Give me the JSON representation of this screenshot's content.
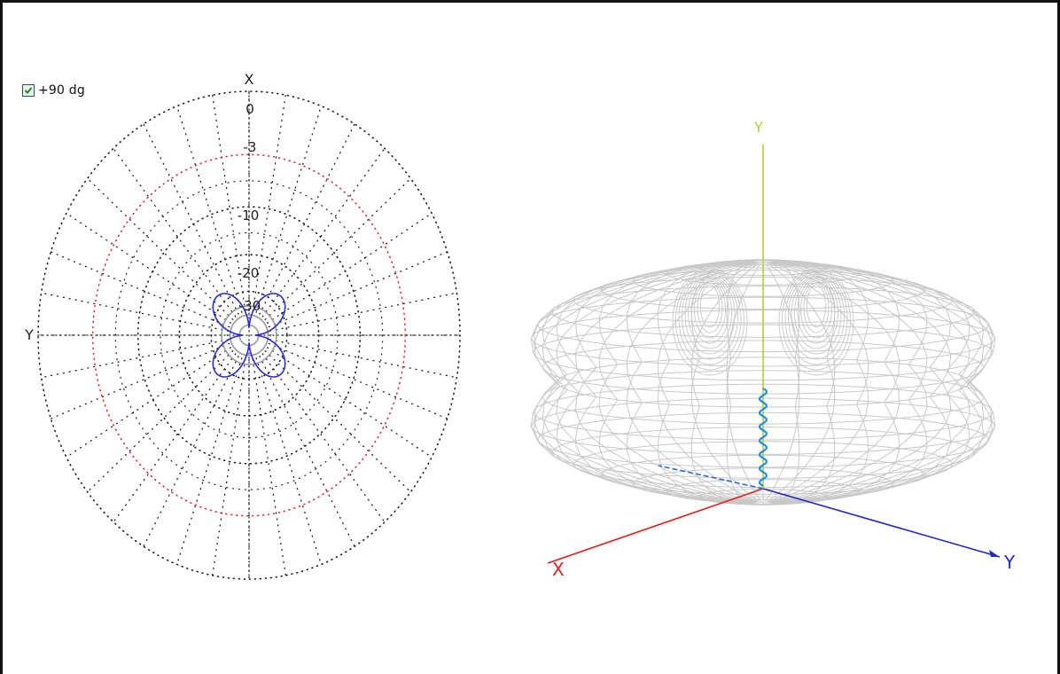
{
  "view_toggle": {
    "label": "+90 dg",
    "checked": true
  },
  "polar_plot": {
    "axis_top_label": "X",
    "axis_left_label": "Y",
    "ring_labels": [
      "0",
      "-3",
      "-10",
      "-20",
      "-30"
    ],
    "ring_levels_db": [
      0,
      -3,
      -10,
      -20,
      -30
    ],
    "reference_ring_db": -3,
    "colors": {
      "grid": "#222222",
      "reference_ring": "#e0303a",
      "pattern": "#2a2ad8",
      "inner": "#9a9a9a"
    }
  },
  "pattern_3d": {
    "axis_labels": {
      "x": "X",
      "y": "Y",
      "z": "Y"
    },
    "colors": {
      "mesh": "#c8c8c8",
      "x_axis": "#e02020",
      "y_axis": "#1a2ad0",
      "z_axis": "#b5c83a",
      "feed": "#1e90e0"
    }
  }
}
